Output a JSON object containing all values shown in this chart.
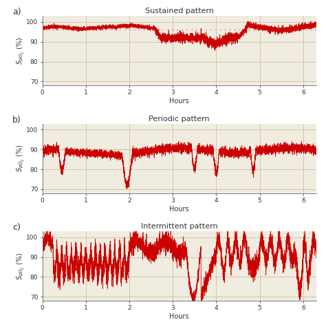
{
  "title_a": "Sustained pattern",
  "title_b": "Periodic pattern",
  "title_c": "Intermittent pattern",
  "xlabel": "Hours",
  "ylabel": "$S_{pO_2}$ (%)",
  "xlim": [
    0,
    6.3
  ],
  "ylim": [
    68,
    103
  ],
  "yticks": [
    70,
    80,
    90,
    100
  ],
  "xticks": [
    0,
    1,
    2,
    3,
    4,
    5,
    6
  ],
  "line_color": "#cc0000",
  "dashed_color": "#e8a0a0",
  "bg_color": "#f0ece0",
  "grid_color": "#c5b89a",
  "label_color": "#333333",
  "panel_labels": [
    "a)",
    "b)",
    "c)"
  ],
  "mean_a": 96.0,
  "mean_b": 90.0,
  "n_points": 5000
}
